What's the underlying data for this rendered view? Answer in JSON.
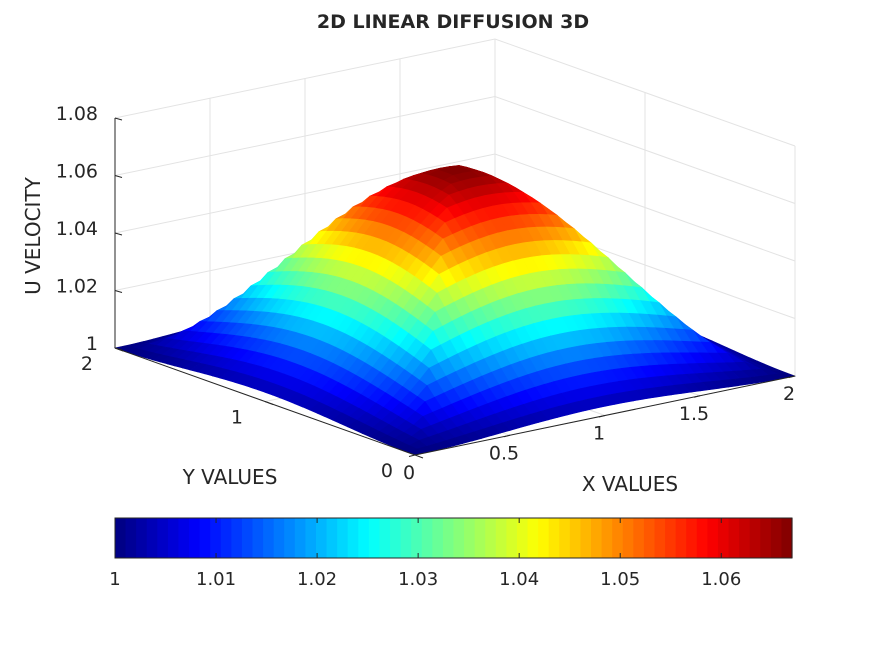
{
  "chart_data": {
    "type": "surface",
    "title": "2D LINEAR DIFFUSION 3D",
    "xlabel": "X VALUES",
    "ylabel": "Y VALUES",
    "zlabel": "U VELOCITY",
    "xlim": [
      0,
      2
    ],
    "ylim": [
      0,
      2
    ],
    "zlim": [
      1,
      1.08
    ],
    "x_ticks": [
      "0",
      "0.5",
      "1",
      "1.5",
      "2"
    ],
    "y_ticks": [
      "0",
      "1",
      "2"
    ],
    "z_ticks": [
      "1",
      "1.02",
      "1.04",
      "1.06",
      "1.08"
    ],
    "grid": true,
    "peak": {
      "x": 1,
      "y": 1,
      "u": 1.067
    },
    "colorbar": {
      "location": "bottom",
      "colormap": "jet",
      "ticks": [
        "1",
        "1.01",
        "1.02",
        "1.03",
        "1.04",
        "1.05",
        "1.06"
      ]
    }
  }
}
